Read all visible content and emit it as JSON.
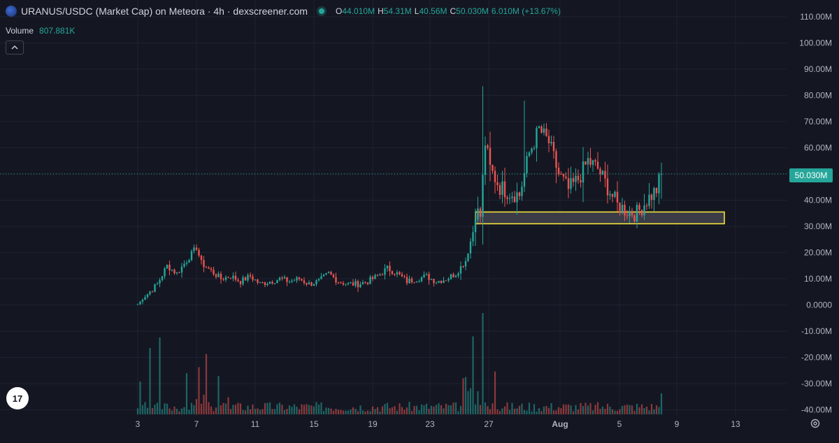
{
  "legend": {
    "title": "URANUS/USDC (Market Cap) on Meteora · 4h · dexscreener.com",
    "open_label": "O",
    "open": "44.010M",
    "high_label": "H",
    "high": "54.31M",
    "low_label": "L",
    "low": "40.56M",
    "close_label": "C",
    "close": "50.030M",
    "change": "6.010M (+13.67%)"
  },
  "volume_legend": {
    "label": "Volume",
    "value": "807.881K"
  },
  "logo": {
    "text": "17"
  },
  "price_tag": "50.030M",
  "colors": {
    "background": "#141722",
    "up": "#26a69a",
    "down": "#ef5350",
    "zone_border": "#f5e13a",
    "zone_fill": "#3b3c48"
  },
  "chart_data": {
    "type": "candlestick",
    "series": [
      {
        "name": "URANUS/USDC (Market Cap)",
        "interval": "4h",
        "unit": "USD",
        "close_approx": [
          [
            0,
            0.3
          ],
          [
            8,
            8
          ],
          [
            12,
            15
          ],
          [
            16,
            12
          ],
          [
            20,
            17
          ],
          [
            24,
            22
          ],
          [
            26,
            16
          ],
          [
            30,
            13
          ],
          [
            34,
            10
          ],
          [
            38,
            11
          ],
          [
            42,
            9
          ],
          [
            46,
            11
          ],
          [
            50,
            8
          ],
          [
            54,
            9
          ],
          [
            58,
            10
          ],
          [
            62,
            9
          ],
          [
            66,
            10
          ],
          [
            70,
            8
          ],
          [
            74,
            9
          ],
          [
            78,
            12
          ],
          [
            82,
            9
          ],
          [
            86,
            8
          ],
          [
            90,
            8
          ],
          [
            94,
            9
          ],
          [
            98,
            11
          ],
          [
            102,
            14
          ],
          [
            106,
            12
          ],
          [
            110,
            9
          ],
          [
            114,
            10
          ],
          [
            118,
            11
          ],
          [
            122,
            9
          ],
          [
            126,
            10
          ],
          [
            130,
            12
          ],
          [
            134,
            17
          ],
          [
            137,
            28
          ],
          [
            138,
            36
          ],
          [
            140,
            34
          ],
          [
            142,
            62
          ],
          [
            144,
            52
          ],
          [
            148,
            45
          ],
          [
            152,
            43
          ],
          [
            156,
            42
          ],
          [
            160,
            58
          ],
          [
            164,
            67
          ],
          [
            168,
            62
          ],
          [
            172,
            50
          ],
          [
            176,
            44
          ],
          [
            180,
            48
          ],
          [
            184,
            55
          ],
          [
            188,
            52
          ],
          [
            192,
            45
          ],
          [
            196,
            38
          ],
          [
            200,
            36
          ],
          [
            204,
            35
          ],
          [
            208,
            40
          ],
          [
            212,
            44
          ],
          [
            214,
            50.03
          ]
        ],
        "wick_highs_approx": [
          [
            141,
            83.5
          ],
          [
            158,
            78
          ],
          [
            214,
            54.31
          ]
        ]
      },
      {
        "name": "Volume",
        "value_last": "807.881K"
      }
    ],
    "x_tick_labels": [
      "3",
      "7",
      "11",
      "15",
      "19",
      "23",
      "27",
      "Aug",
      "5",
      "9",
      "13"
    ],
    "y_tick_labels": [
      "110.00M",
      "100.00M",
      "90.00M",
      "80.00M",
      "70.00M",
      "60.00M",
      "50.00M",
      "40.00M",
      "30.00M",
      "20.00M",
      "10.00M",
      "0.0000",
      "-10.00M",
      "-20.00M",
      "-30.00M",
      "-40.00M"
    ],
    "y_range": [
      -40000000,
      110000000
    ],
    "last_price": "50.030M",
    "zone": {
      "low": 31000000,
      "high": 35500000
    },
    "grid": true
  }
}
